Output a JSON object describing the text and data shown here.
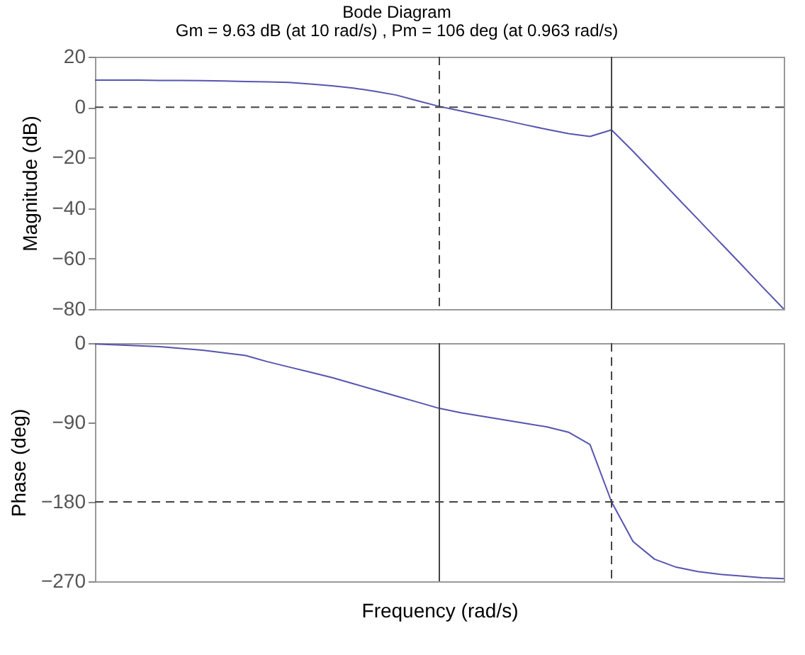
{
  "chart_data": [
    {
      "type": "line",
      "title": "Bode Diagram",
      "subtitle": "Gm = 9.63 dB (at 10 rad/s) , Pm = 106 deg (at 0.963 rad/s)",
      "ylabel": "Magnitude (dB)",
      "ylim": [
        -80,
        20
      ],
      "yticks": [
        -80,
        -60,
        -40,
        -20,
        0,
        20
      ],
      "tick_labels": "y",
      "grid": false,
      "legend": false,
      "categories": [
        null,
        null,
        null,
        null,
        null,
        null,
        null,
        null,
        null,
        null,
        null,
        null,
        null,
        null,
        null,
        null,
        null,
        null,
        null,
        null,
        null,
        null,
        null,
        null,
        null,
        null,
        null,
        null,
        null,
        null,
        null,
        null,
        null
      ],
      "series": [
        {
          "color": "#5555b0",
          "values": [
            10.7,
            10.7,
            10.7,
            10.6,
            10.6,
            10.5,
            10.4,
            10.2,
            10,
            9.8,
            9.2,
            8.5,
            7.6,
            6.3,
            4.8,
            2.5,
            0.3,
            -1.5,
            -3.3,
            -5.1,
            -7,
            -8.8,
            -10.5,
            -11.6,
            -9,
            -17.5,
            -26.4,
            -35.4,
            -44.3,
            -53.2,
            -62.1,
            -71.1,
            -80
          ]
        }
      ],
      "ref_lines": [
        {
          "axis": "y",
          "value": 0,
          "line_style": "dashed"
        }
      ]
    },
    {
      "type": "line",
      "xlabel": "Frequency (rad/s)",
      "ylabel": "Phase (deg)",
      "ylim": [
        -270,
        0
      ],
      "yticks": [
        -270,
        -180,
        -90,
        0
      ],
      "tick_labels": "y",
      "grid": false,
      "legend": false,
      "categories": [
        null,
        null,
        null,
        null,
        null,
        null,
        null,
        null,
        null,
        null,
        null,
        null,
        null,
        null,
        null,
        null,
        null,
        null,
        null,
        null,
        null,
        null,
        null,
        null,
        null,
        null,
        null,
        null,
        null,
        null,
        null,
        null,
        null
      ],
      "series": [
        {
          "color": "#5555b0",
          "values": [
            -1,
            -2,
            -3,
            -4,
            -6,
            -8,
            -11,
            -14,
            -21,
            -27,
            -33,
            -39,
            -46,
            -53,
            -60,
            -67,
            -74,
            -79,
            -83,
            -87,
            -91,
            -95,
            -101,
            -115,
            -180,
            -225,
            -245,
            -254,
            -259,
            -262,
            -264,
            -266,
            -267
          ]
        }
      ],
      "ref_lines": [
        {
          "axis": "y",
          "value": -180,
          "line_style": "dashed"
        }
      ]
    }
  ]
}
